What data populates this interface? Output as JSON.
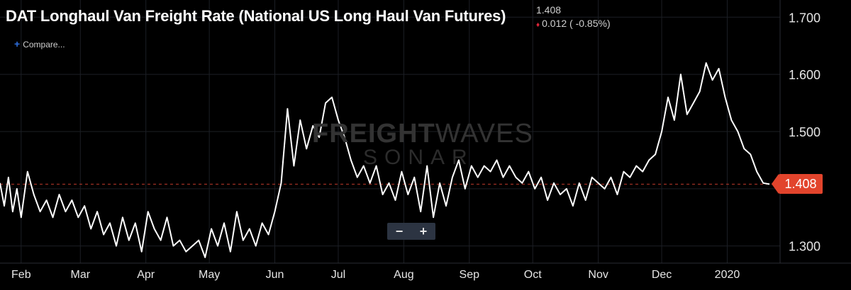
{
  "header": {
    "title": "DAT Longhaul Van Freight Rate (National US Long Haul Van Futures)",
    "last_value": "1.408",
    "change": "0.012 ( -0.85%)"
  },
  "compare_label": "Compare...",
  "watermark": {
    "brand_bold": "FREIGHT",
    "brand_thin": "WAVES",
    "product": "SONAR"
  },
  "zoom": {
    "minus": "−",
    "plus": "+"
  },
  "colors": {
    "background": "#000000",
    "line": "#ffffff",
    "grid": "#1c1f25",
    "current_price": "#e2442c",
    "down_arrow": "#e0263a",
    "compare_plus": "#2f6fe0"
  },
  "current_price_tag": "1.408",
  "chart_data": {
    "type": "line",
    "title": "DAT Longhaul Van Freight Rate (National US Long Haul Van Futures)",
    "xlabel": "",
    "ylabel": "",
    "ylim": [
      1.27,
      1.73
    ],
    "yticks": [
      "1.300",
      "1.400",
      "1.500",
      "1.600",
      "1.700"
    ],
    "xticks": [
      "Feb",
      "Mar",
      "Apr",
      "May",
      "Jun",
      "Jul",
      "Aug",
      "Sep",
      "Oct",
      "Nov",
      "Dec",
      "2020"
    ],
    "xtick_dates": [
      "2019-02-01",
      "2019-03-01",
      "2019-04-01",
      "2019-05-01",
      "2019-06-01",
      "2019-07-01",
      "2019-08-01",
      "2019-09-01",
      "2019-10-01",
      "2019-11-01",
      "2019-12-01",
      "2020-01-01"
    ],
    "reference_line": {
      "value": 1.408,
      "style": "dashed"
    },
    "grid": true,
    "series": [
      {
        "x": [
          "2019-01-22",
          "2019-01-24",
          "2019-01-26",
          "2019-01-28",
          "2019-01-30",
          "2019-02-01",
          "2019-02-04",
          "2019-02-07",
          "2019-02-10",
          "2019-02-13",
          "2019-02-16",
          "2019-02-19",
          "2019-02-22",
          "2019-02-25",
          "2019-02-28",
          "2019-03-03",
          "2019-03-06",
          "2019-03-09",
          "2019-03-12",
          "2019-03-15",
          "2019-03-18",
          "2019-03-21",
          "2019-03-24",
          "2019-03-27",
          "2019-03-30",
          "2019-04-02",
          "2019-04-05",
          "2019-04-08",
          "2019-04-11",
          "2019-04-14",
          "2019-04-17",
          "2019-04-20",
          "2019-04-23",
          "2019-04-26",
          "2019-04-29",
          "2019-05-02",
          "2019-05-05",
          "2019-05-08",
          "2019-05-11",
          "2019-05-14",
          "2019-05-17",
          "2019-05-20",
          "2019-05-23",
          "2019-05-26",
          "2019-05-29",
          "2019-06-01",
          "2019-06-04",
          "2019-06-07",
          "2019-06-10",
          "2019-06-13",
          "2019-06-16",
          "2019-06-19",
          "2019-06-22",
          "2019-06-25",
          "2019-06-28",
          "2019-07-01",
          "2019-07-04",
          "2019-07-07",
          "2019-07-10",
          "2019-07-13",
          "2019-07-16",
          "2019-07-19",
          "2019-07-22",
          "2019-07-25",
          "2019-07-28",
          "2019-07-31",
          "2019-08-03",
          "2019-08-06",
          "2019-08-09",
          "2019-08-12",
          "2019-08-15",
          "2019-08-18",
          "2019-08-21",
          "2019-08-24",
          "2019-08-27",
          "2019-08-30",
          "2019-09-02",
          "2019-09-05",
          "2019-09-08",
          "2019-09-11",
          "2019-09-14",
          "2019-09-17",
          "2019-09-20",
          "2019-09-23",
          "2019-09-26",
          "2019-09-29",
          "2019-10-02",
          "2019-10-05",
          "2019-10-08",
          "2019-10-11",
          "2019-10-14",
          "2019-10-17",
          "2019-10-20",
          "2019-10-23",
          "2019-10-26",
          "2019-10-29",
          "2019-11-01",
          "2019-11-04",
          "2019-11-07",
          "2019-11-10",
          "2019-11-13",
          "2019-11-16",
          "2019-11-19",
          "2019-11-22",
          "2019-11-25",
          "2019-11-28",
          "2019-12-01",
          "2019-12-04",
          "2019-12-07",
          "2019-12-10",
          "2019-12-13",
          "2019-12-16",
          "2019-12-19",
          "2019-12-22",
          "2019-12-25",
          "2019-12-28",
          "2019-12-31",
          "2020-01-03",
          "2020-01-06",
          "2020-01-09",
          "2020-01-12",
          "2020-01-15",
          "2020-01-18",
          "2020-01-21"
        ],
        "y": [
          1.41,
          1.37,
          1.42,
          1.36,
          1.4,
          1.35,
          1.43,
          1.39,
          1.36,
          1.38,
          1.35,
          1.39,
          1.36,
          1.38,
          1.35,
          1.37,
          1.33,
          1.36,
          1.32,
          1.34,
          1.3,
          1.35,
          1.31,
          1.34,
          1.29,
          1.36,
          1.33,
          1.31,
          1.35,
          1.3,
          1.31,
          1.29,
          1.3,
          1.31,
          1.28,
          1.33,
          1.3,
          1.34,
          1.29,
          1.36,
          1.31,
          1.33,
          1.3,
          1.34,
          1.32,
          1.36,
          1.41,
          1.54,
          1.44,
          1.52,
          1.47,
          1.51,
          1.49,
          1.55,
          1.56,
          1.52,
          1.49,
          1.45,
          1.42,
          1.44,
          1.41,
          1.44,
          1.39,
          1.41,
          1.38,
          1.43,
          1.39,
          1.42,
          1.36,
          1.44,
          1.35,
          1.41,
          1.37,
          1.42,
          1.45,
          1.4,
          1.44,
          1.42,
          1.44,
          1.43,
          1.45,
          1.42,
          1.44,
          1.42,
          1.41,
          1.43,
          1.4,
          1.42,
          1.38,
          1.41,
          1.39,
          1.4,
          1.37,
          1.41,
          1.38,
          1.42,
          1.41,
          1.4,
          1.42,
          1.39,
          1.43,
          1.42,
          1.44,
          1.43,
          1.45,
          1.46,
          1.5,
          1.56,
          1.52,
          1.6,
          1.53,
          1.55,
          1.57,
          1.62,
          1.59,
          1.61,
          1.56,
          1.52,
          1.5,
          1.47,
          1.46,
          1.43,
          1.41,
          1.408
        ]
      }
    ]
  }
}
